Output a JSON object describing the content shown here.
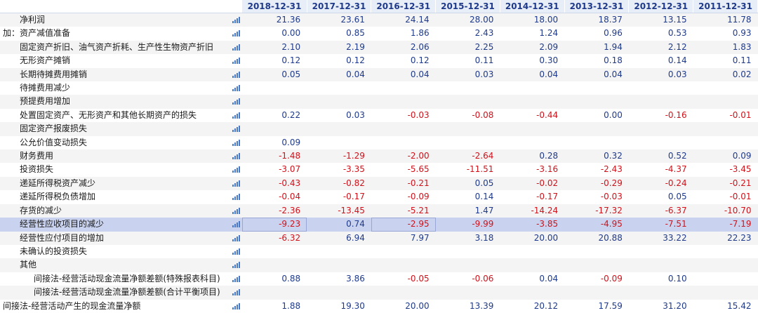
{
  "colors": {
    "header_bg": "#e8eef8",
    "header_text": "#1f3a8a",
    "positive": "#1f3a8a",
    "negative": "#d0121b",
    "highlight_row": "#c9d3ef"
  },
  "columns": [
    "2018-12-31",
    "2017-12-31",
    "2016-12-31",
    "2015-12-31",
    "2014-12-31",
    "2013-12-31",
    "2012-12-31",
    "2011-12-31"
  ],
  "rows": [
    {
      "label": "净利润",
      "indent": 0,
      "values": [
        "21.36",
        "23.61",
        "24.14",
        "28.00",
        "18.00",
        "18.37",
        "13.15",
        "11.78"
      ]
    },
    {
      "label": "加：资产减值准备",
      "indent": 0,
      "values": [
        "0.00",
        "0.85",
        "1.86",
        "2.43",
        "1.24",
        "0.96",
        "0.53",
        "0.93"
      ]
    },
    {
      "label": "固定资产折旧、油气资产折耗、生产性生物资产折旧",
      "indent": 1,
      "values": [
        "2.10",
        "2.19",
        "2.06",
        "2.25",
        "2.09",
        "1.94",
        "2.12",
        "1.83"
      ]
    },
    {
      "label": "无形资产摊销",
      "indent": 1,
      "values": [
        "0.12",
        "0.12",
        "0.12",
        "0.11",
        "0.30",
        "0.18",
        "0.14",
        "0.11"
      ]
    },
    {
      "label": "长期待摊费用摊销",
      "indent": 1,
      "values": [
        "0.05",
        "0.04",
        "0.04",
        "0.03",
        "0.04",
        "0.04",
        "0.03",
        "0.02"
      ]
    },
    {
      "label": "待摊费用减少",
      "indent": 1,
      "values": [
        "",
        "",
        "",
        "",
        "",
        "",
        "",
        ""
      ]
    },
    {
      "label": "预提费用增加",
      "indent": 1,
      "values": [
        "",
        "",
        "",
        "",
        "",
        "",
        "",
        ""
      ]
    },
    {
      "label": "处置固定资产、无形资产和其他长期资产的损失",
      "indent": 1,
      "values": [
        "0.22",
        "0.03",
        "-0.03",
        "-0.08",
        "-0.44",
        "0.00",
        "-0.16",
        "-0.01"
      ]
    },
    {
      "label": "固定资产报废损失",
      "indent": 1,
      "values": [
        "",
        "",
        "",
        "",
        "",
        "",
        "",
        ""
      ]
    },
    {
      "label": "公允价值变动损失",
      "indent": 1,
      "values": [
        "0.09",
        "",
        "",
        "",
        "",
        "",
        "",
        ""
      ]
    },
    {
      "label": "财务费用",
      "indent": 1,
      "values": [
        "-1.48",
        "-1.29",
        "-2.00",
        "-2.64",
        "0.28",
        "0.32",
        "0.52",
        "0.09"
      ]
    },
    {
      "label": "投资损失",
      "indent": 1,
      "values": [
        "-3.07",
        "-3.35",
        "-5.65",
        "-11.51",
        "-3.16",
        "-2.43",
        "-4.37",
        "-3.45"
      ]
    },
    {
      "label": "递延所得税资产减少",
      "indent": 1,
      "values": [
        "-0.43",
        "-0.82",
        "-0.21",
        "0.05",
        "-0.02",
        "-0.29",
        "-0.24",
        "-0.21"
      ]
    },
    {
      "label": "递延所得税负债增加",
      "indent": 1,
      "values": [
        "-0.04",
        "-0.17",
        "-0.09",
        "0.14",
        "-0.17",
        "-0.03",
        "0.05",
        "-0.01"
      ]
    },
    {
      "label": "存货的减少",
      "indent": 1,
      "values": [
        "-2.36",
        "-13.45",
        "-5.21",
        "1.47",
        "-14.24",
        "-17.32",
        "-6.37",
        "-10.70"
      ]
    },
    {
      "label": "经营性应收项目的减少",
      "indent": 1,
      "highlight": true,
      "values": [
        "-9.23",
        "0.74",
        "-2.95",
        "-9.99",
        "-3.85",
        "-4.95",
        "-7.51",
        "-7.19"
      ]
    },
    {
      "label": "经营性应付项目的增加",
      "indent": 1,
      "values": [
        "-6.32",
        "6.94",
        "7.97",
        "3.18",
        "20.00",
        "20.88",
        "33.22",
        "22.23"
      ]
    },
    {
      "label": "未确认的投资损失",
      "indent": 1,
      "values": [
        "",
        "",
        "",
        "",
        "",
        "",
        "",
        ""
      ]
    },
    {
      "label": "其他",
      "indent": 1,
      "values": [
        "",
        "",
        "",
        "",
        "",
        "",
        "",
        ""
      ]
    },
    {
      "label": "间接法-经营活动现金流量净额差额(特殊报表科目)",
      "indent": 1,
      "values": [
        "0.88",
        "3.86",
        "-0.05",
        "-0.06",
        "0.04",
        "-0.09",
        "0.10",
        ""
      ]
    },
    {
      "label": "间接法-经营活动现金流量净额差额(合计平衡项目)",
      "indent": 1,
      "values": [
        "",
        "",
        "",
        "",
        "",
        "",
        "",
        ""
      ]
    },
    {
      "label": "间接法-经营活动产生的现金流量净额",
      "indent": 0,
      "values": [
        "1.88",
        "19.30",
        "20.00",
        "13.39",
        "20.12",
        "17.59",
        "31.20",
        "15.42"
      ]
    }
  ]
}
